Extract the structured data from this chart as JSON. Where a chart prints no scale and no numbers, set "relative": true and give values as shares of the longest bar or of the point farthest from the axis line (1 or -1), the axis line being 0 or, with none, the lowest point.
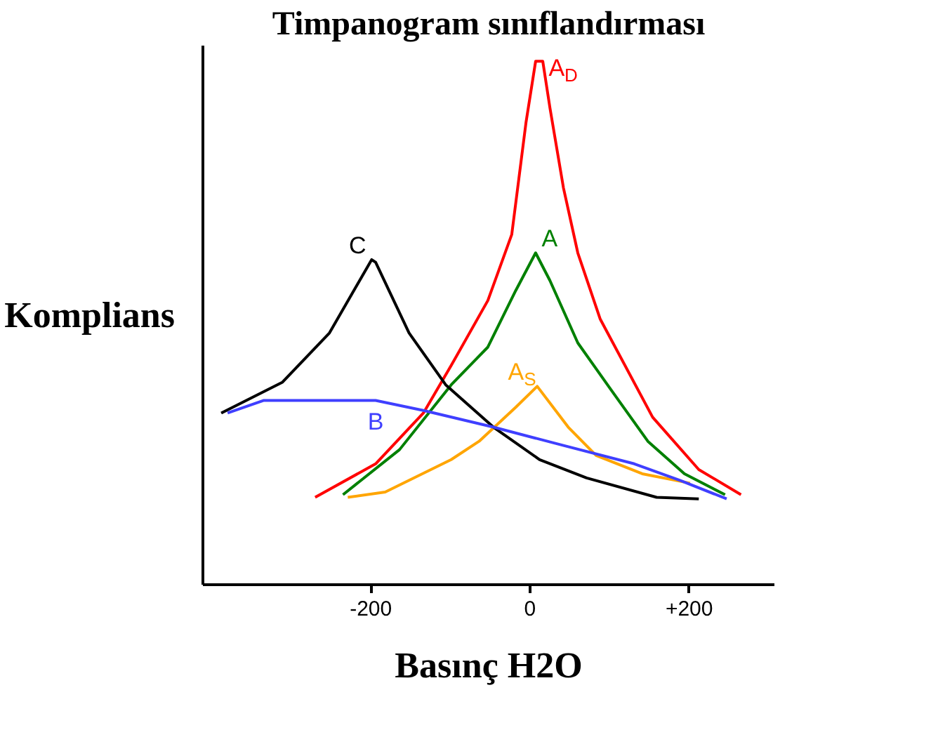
{
  "chart_data": {
    "type": "line",
    "title": "Timpanogram sınıflandırması",
    "xlabel": "Basınç H2O",
    "ylabel": "Komplians",
    "relative": true,
    "tick_labels": "x",
    "xlim": [
      -411,
      307
    ],
    "xticks": [
      {
        "value": -200,
        "label": "-200"
      },
      0,
      {
        "value": 200,
        "label": "+200"
      }
    ],
    "series": [
      {
        "name": "A$_{D}$",
        "color": "#ff0000",
        "x": [
          -270,
          -194,
          -134,
          -99,
          -53,
          -23,
          -5,
          7,
          16,
          25,
          42,
          60,
          88,
          154,
          212,
          265
        ],
        "values": [
          0.167,
          0.231,
          0.328,
          0.419,
          0.543,
          0.669,
          0.884,
          1.0,
          1.0,
          0.911,
          0.758,
          0.634,
          0.508,
          0.32,
          0.22,
          0.172
        ]
      },
      {
        "name": "A",
        "color": "#008000",
        "x": [
          -235,
          -164,
          -99,
          -53,
          -18,
          7,
          25,
          60,
          101,
          148,
          194,
          245
        ],
        "values": [
          0.172,
          0.258,
          0.382,
          0.454,
          0.562,
          0.634,
          0.581,
          0.462,
          0.374,
          0.274,
          0.212,
          0.172
        ]
      },
      {
        "name": "A$_{S}$",
        "color": "#ffa500",
        "x": [
          -229,
          -182,
          -99,
          -64,
          -18,
          9,
          48,
          83,
          141,
          201
        ],
        "values": [
          0.167,
          0.177,
          0.239,
          0.274,
          0.339,
          0.379,
          0.301,
          0.247,
          0.212,
          0.194
        ]
      },
      {
        "name": "C",
        "color": "#000000",
        "x": [
          -388,
          -311,
          -252,
          -199,
          -194,
          -152,
          -106,
          -46,
          12,
          71,
          159,
          212
        ],
        "values": [
          0.328,
          0.387,
          0.481,
          0.621,
          0.616,
          0.481,
          0.382,
          0.301,
          0.239,
          0.204,
          0.167,
          0.164
        ]
      },
      {
        "name": "B",
        "color": "#3f3fff",
        "x": [
          -380,
          -335,
          -194,
          -134,
          -46,
          42,
          131,
          189,
          247
        ],
        "values": [
          0.328,
          0.352,
          0.352,
          0.333,
          0.301,
          0.266,
          0.231,
          0.199,
          0.164
        ]
      }
    ]
  }
}
